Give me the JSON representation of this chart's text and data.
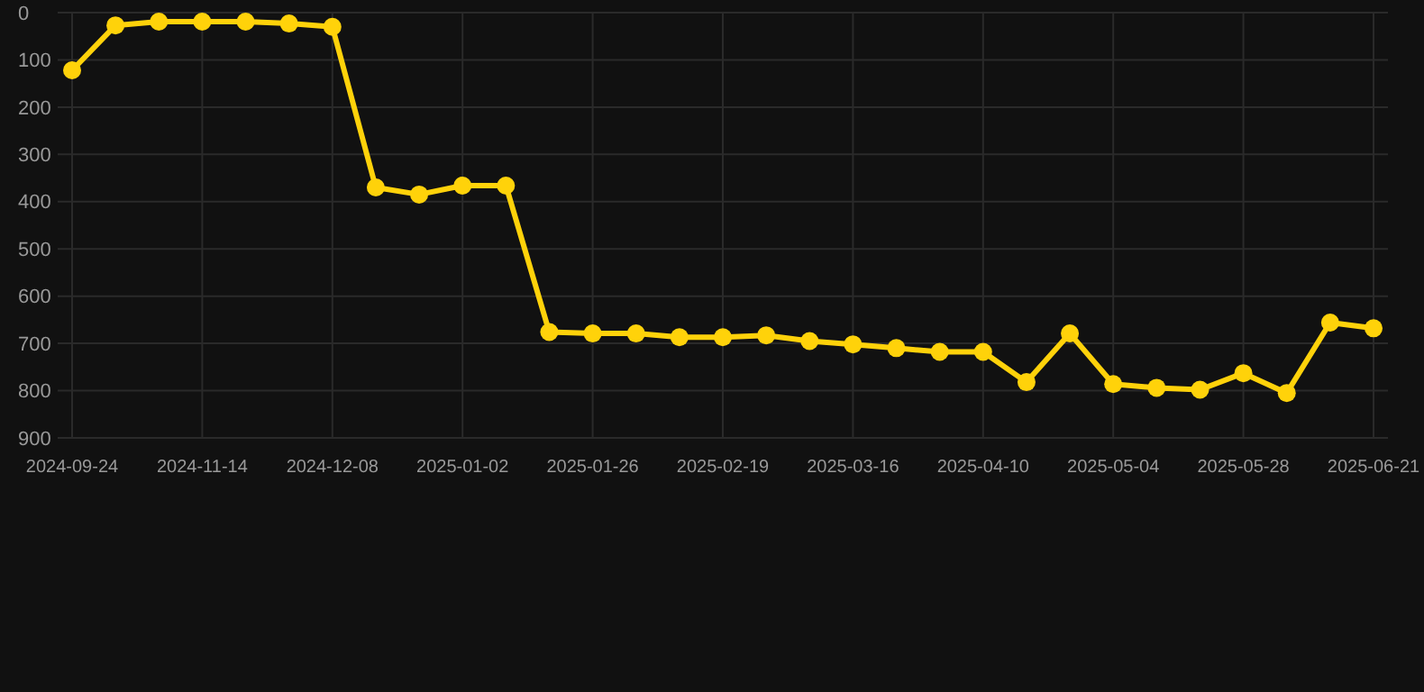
{
  "chart_data": {
    "type": "line",
    "categories": [
      "2024-09-24",
      null,
      null,
      "2024-11-14",
      null,
      null,
      "2024-12-08",
      null,
      null,
      "2025-01-02",
      null,
      null,
      "2025-01-26",
      null,
      null,
      "2025-02-19",
      null,
      null,
      "2025-03-16",
      null,
      null,
      "2025-04-10",
      null,
      null,
      "2025-05-04",
      null,
      null,
      "2025-05-28",
      null,
      null,
      "2025-06-21"
    ],
    "series": [
      {
        "color": "#ffd20a",
        "values": [
          122,
          27,
          19,
          19,
          19,
          23,
          30,
          370,
          385,
          366,
          366,
          676,
          679,
          679,
          687,
          687,
          683,
          695,
          702,
          710,
          718,
          718,
          782,
          679,
          786,
          794,
          798,
          763,
          805,
          656,
          668
        ]
      }
    ],
    "ylim": [
      900,
      0
    ],
    "yticks": [
      0,
      100,
      200,
      300,
      400,
      500,
      600,
      700,
      800,
      900
    ],
    "grid": true,
    "marker": "circle",
    "line_style": "solid",
    "legend": false
  }
}
